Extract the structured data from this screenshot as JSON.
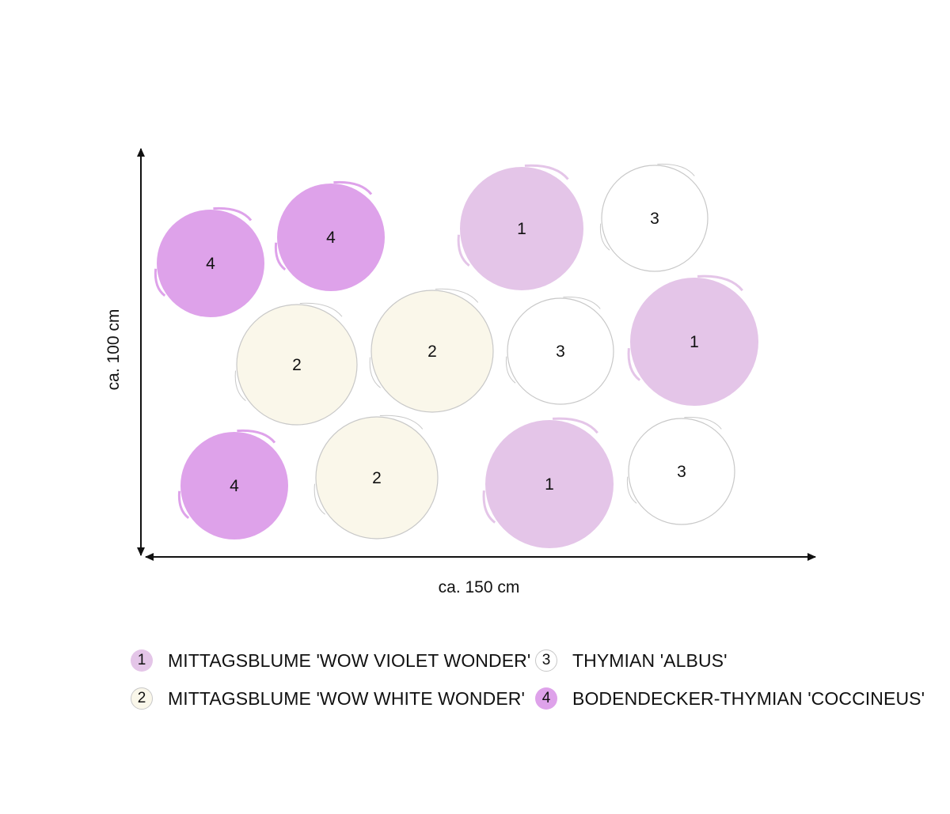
{
  "colors": {
    "violet_wonder": "#e4c5e8",
    "white_wonder": "#faf7ea",
    "albus": "#ffffff",
    "coccineus": "#dea2ea",
    "outline": "#c8c8c8",
    "axis": "#111111"
  },
  "dimensions": {
    "width_label": "ca. 150 cm",
    "height_label": "ca. 100 cm"
  },
  "plants": [
    {
      "number": "4",
      "type": "coccineus"
    },
    {
      "number": "4",
      "type": "coccineus"
    },
    {
      "number": "1",
      "type": "violet_wonder"
    },
    {
      "number": "3",
      "type": "albus"
    },
    {
      "number": "2",
      "type": "white_wonder"
    },
    {
      "number": "2",
      "type": "white_wonder"
    },
    {
      "number": "3",
      "type": "albus"
    },
    {
      "number": "1",
      "type": "violet_wonder"
    },
    {
      "number": "4",
      "type": "coccineus"
    },
    {
      "number": "2",
      "type": "white_wonder"
    },
    {
      "number": "1",
      "type": "violet_wonder"
    },
    {
      "number": "3",
      "type": "albus"
    }
  ],
  "legend": [
    {
      "number": "1",
      "label": "MITTAGSBLUME 'WOW VIOLET WONDER'",
      "type": "violet_wonder"
    },
    {
      "number": "3",
      "label": "THYMIAN 'ALBUS'",
      "type": "albus"
    },
    {
      "number": "2",
      "label": "MITTAGSBLUME 'WOW WHITE WONDER'",
      "type": "white_wonder"
    },
    {
      "number": "4",
      "label": "BODENDECKER-THYMIAN 'COCCINEUS'",
      "type": "coccineus"
    }
  ]
}
